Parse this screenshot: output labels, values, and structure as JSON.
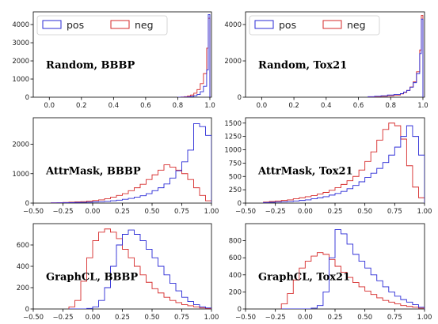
{
  "chart_data": [
    {
      "type": "histogram",
      "label": "Random, BBBP",
      "legend": true,
      "xlim": [
        -0.1,
        1.01
      ],
      "xticks": [
        "0.0",
        "0.2",
        "0.4",
        "0.6",
        "0.8",
        "1.0"
      ],
      "ylim": [
        0,
        4700
      ],
      "yticks": [
        "0",
        "1000",
        "2000",
        "3000",
        "4000"
      ],
      "bin_edges": [
        0.8,
        0.82,
        0.84,
        0.86,
        0.88,
        0.9,
        0.92,
        0.94,
        0.96,
        0.98,
        0.99,
        1.0
      ],
      "series": [
        {
          "name": "pos",
          "color": "#2a2ad6",
          "values": [
            0,
            5,
            10,
            20,
            40,
            80,
            150,
            300,
            600,
            1500,
            4550
          ]
        },
        {
          "name": "neg",
          "color": "#d62a2a",
          "values": [
            5,
            15,
            30,
            60,
            120,
            220,
            420,
            750,
            1300,
            2700,
            4350
          ]
        }
      ]
    },
    {
      "type": "histogram",
      "label": "Random, Tox21",
      "legend": true,
      "xlim": [
        -0.1,
        1.01
      ],
      "xticks": [
        "0.0",
        "0.2",
        "0.4",
        "0.6",
        "0.8",
        "1.0"
      ],
      "ylim": [
        0,
        4700
      ],
      "yticks": [
        "0",
        "2000",
        "4000"
      ],
      "bin_edges": [
        0.66,
        0.7,
        0.74,
        0.78,
        0.82,
        0.86,
        0.88,
        0.9,
        0.92,
        0.94,
        0.96,
        0.98,
        0.99,
        1.0
      ],
      "series": [
        {
          "name": "pos",
          "color": "#2a2ad6",
          "values": [
            30,
            50,
            80,
            120,
            150,
            200,
            280,
            380,
            550,
            800,
            1300,
            2400,
            4300
          ]
        },
        {
          "name": "neg",
          "color": "#d62a2a",
          "values": [
            10,
            30,
            50,
            80,
            120,
            180,
            260,
            380,
            560,
            850,
            1400,
            2600,
            4500
          ]
        }
      ]
    },
    {
      "type": "histogram",
      "label": "AttrMask, BBBP",
      "legend": false,
      "xlim": [
        -0.5,
        1.0
      ],
      "xticks": [
        "−0.50",
        "−0.25",
        "0.00",
        "0.25",
        "0.50",
        "0.75",
        "1.00"
      ],
      "ylim": [
        0,
        2900
      ],
      "yticks": [
        "0",
        "1000",
        "2000"
      ],
      "bin_edges": [
        -0.35,
        -0.3,
        -0.25,
        -0.2,
        -0.15,
        -0.1,
        -0.05,
        0.0,
        0.05,
        0.1,
        0.15,
        0.2,
        0.25,
        0.3,
        0.35,
        0.4,
        0.45,
        0.5,
        0.55,
        0.6,
        0.65,
        0.7,
        0.75,
        0.8,
        0.85,
        0.9,
        0.95,
        1.0
      ],
      "series": [
        {
          "name": "pos",
          "color": "#2a2ad6",
          "values": [
            5,
            8,
            10,
            15,
            20,
            25,
            30,
            40,
            50,
            60,
            80,
            100,
            130,
            160,
            200,
            250,
            320,
            420,
            520,
            650,
            850,
            1100,
            1400,
            1800,
            2700,
            2600,
            2300
          ]
        },
        {
          "name": "neg",
          "color": "#d62a2a",
          "values": [
            10,
            15,
            20,
            30,
            40,
            50,
            70,
            90,
            110,
            150,
            200,
            260,
            320,
            420,
            520,
            640,
            800,
            960,
            1120,
            1300,
            1220,
            1120,
            1000,
            800,
            520,
            260,
            80
          ]
        }
      ]
    },
    {
      "type": "histogram",
      "label": "AttrMask, Tox21",
      "legend": false,
      "xlim": [
        -0.5,
        1.0
      ],
      "xticks": [
        "−0.50",
        "−0.25",
        "0.00",
        "0.25",
        "0.50",
        "0.75",
        "1.00"
      ],
      "ylim": [
        0,
        1600
      ],
      "yticks": [
        "0",
        "250",
        "500",
        "750",
        "1000",
        "1250",
        "1500"
      ],
      "bin_edges": [
        -0.35,
        -0.3,
        -0.25,
        -0.2,
        -0.15,
        -0.1,
        -0.05,
        0.0,
        0.05,
        0.1,
        0.15,
        0.2,
        0.25,
        0.3,
        0.35,
        0.4,
        0.45,
        0.5,
        0.55,
        0.6,
        0.65,
        0.7,
        0.75,
        0.8,
        0.85,
        0.9,
        0.95,
        1.0
      ],
      "series": [
        {
          "name": "pos",
          "color": "#2a2ad6",
          "values": [
            10,
            15,
            20,
            25,
            30,
            40,
            50,
            60,
            80,
            100,
            120,
            150,
            180,
            220,
            270,
            330,
            400,
            480,
            560,
            650,
            760,
            900,
            1050,
            1250,
            1450,
            1250,
            900
          ]
        },
        {
          "name": "neg",
          "color": "#d62a2a",
          "values": [
            20,
            30,
            40,
            50,
            60,
            80,
            100,
            120,
            140,
            170,
            200,
            240,
            290,
            350,
            420,
            500,
            620,
            780,
            960,
            1180,
            1380,
            1500,
            1450,
            1200,
            700,
            300,
            100
          ]
        }
      ]
    },
    {
      "type": "histogram",
      "label": "GraphCL, BBBP",
      "legend": false,
      "xlim": [
        -0.5,
        1.0
      ],
      "xticks": [
        "−0.50",
        "−0.25",
        "0.00",
        "0.25",
        "0.50",
        "0.75",
        "1.00"
      ],
      "ylim": [
        0,
        800
      ],
      "yticks": [
        "0",
        "200",
        "400",
        "600"
      ],
      "bin_edges": [
        -0.2,
        -0.15,
        -0.1,
        -0.05,
        0.0,
        0.05,
        0.1,
        0.15,
        0.2,
        0.25,
        0.3,
        0.35,
        0.4,
        0.45,
        0.5,
        0.55,
        0.6,
        0.65,
        0.7,
        0.75,
        0.8,
        0.85,
        0.9,
        0.95,
        1.0
      ],
      "series": [
        {
          "name": "pos",
          "color": "#2a2ad6",
          "values": [
            0,
            0,
            0,
            5,
            20,
            80,
            200,
            400,
            600,
            700,
            740,
            700,
            640,
            560,
            480,
            400,
            320,
            240,
            170,
            110,
            70,
            40,
            20,
            10
          ]
        },
        {
          "name": "neg",
          "color": "#d62a2a",
          "values": [
            20,
            80,
            260,
            480,
            640,
            720,
            750,
            720,
            660,
            560,
            480,
            400,
            320,
            250,
            190,
            150,
            110,
            80,
            60,
            40,
            30,
            20,
            10,
            5
          ]
        }
      ]
    },
    {
      "type": "histogram",
      "label": "GraphCL, Tox21",
      "legend": false,
      "xlim": [
        -0.5,
        1.0
      ],
      "xticks": [
        "−0.50",
        "−0.25",
        "0.00",
        "0.25",
        "0.50",
        "0.75",
        "1.00"
      ],
      "ylim": [
        0,
        1000
      ],
      "yticks": [
        "0",
        "200",
        "400",
        "600",
        "800"
      ],
      "bin_edges": [
        -0.2,
        -0.15,
        -0.1,
        -0.05,
        0.0,
        0.05,
        0.1,
        0.15,
        0.2,
        0.25,
        0.3,
        0.35,
        0.4,
        0.45,
        0.5,
        0.55,
        0.6,
        0.65,
        0.7,
        0.75,
        0.8,
        0.85,
        0.9,
        0.95,
        1.0
      ],
      "series": [
        {
          "name": "pos",
          "color": "#2a2ad6",
          "values": [
            0,
            0,
            0,
            0,
            0,
            10,
            40,
            200,
            600,
            930,
            880,
            760,
            640,
            560,
            480,
            400,
            330,
            260,
            200,
            150,
            110,
            80,
            50,
            20
          ]
        },
        {
          "name": "neg",
          "color": "#d62a2a",
          "values": [
            60,
            180,
            340,
            480,
            560,
            620,
            660,
            640,
            580,
            500,
            430,
            370,
            310,
            260,
            210,
            170,
            130,
            100,
            80,
            60,
            40,
            30,
            20,
            10
          ]
        }
      ]
    }
  ]
}
